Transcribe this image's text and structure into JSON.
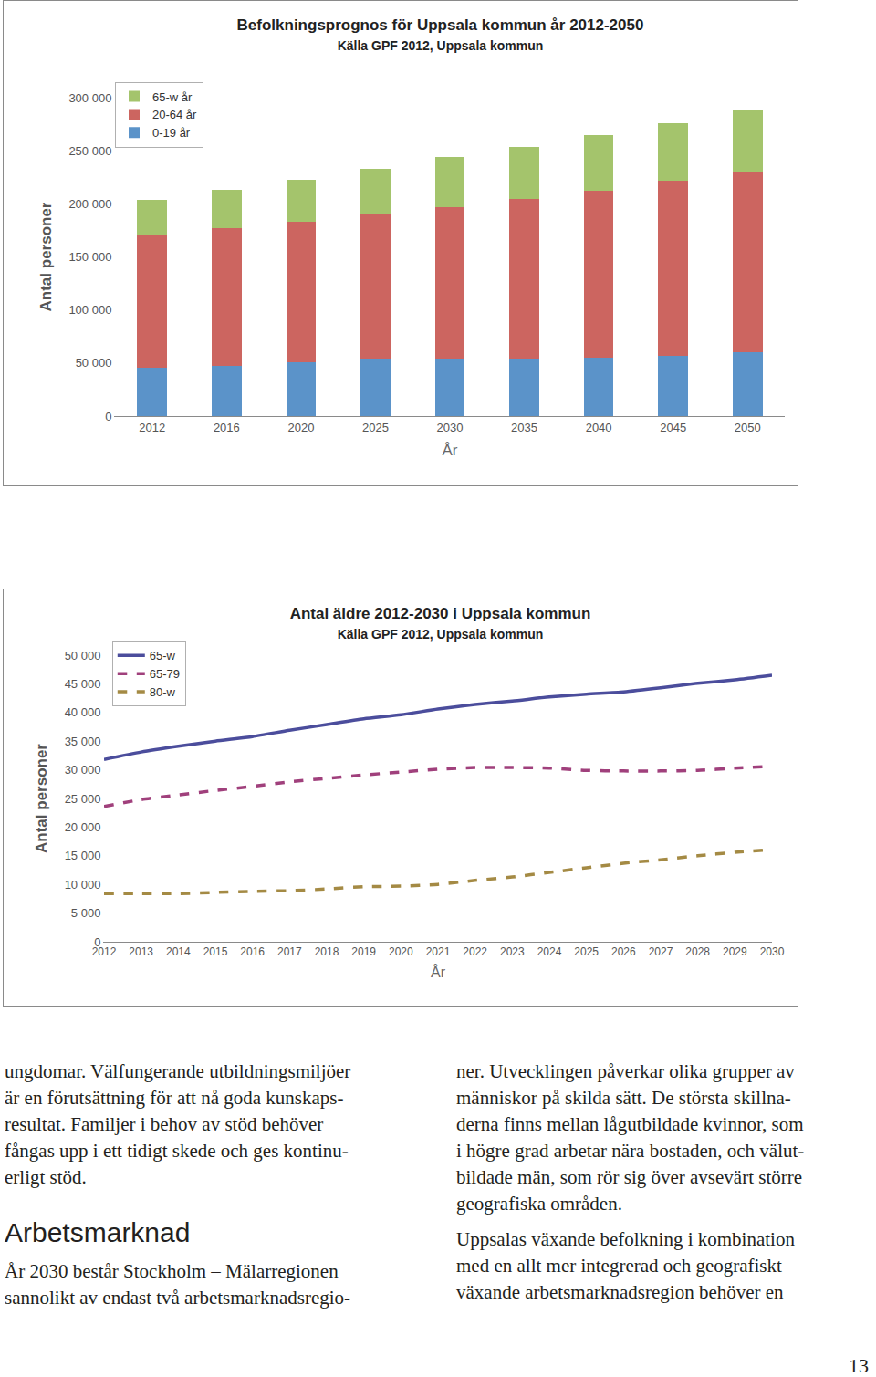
{
  "chart_data": [
    {
      "type": "bar",
      "title": "Befolkningsprognos för Uppsala kommun år 2012-2050",
      "subtitle": "Källa GPF 2012, Uppsala kommun",
      "x_label": "År",
      "y_label": "Antal personer",
      "stacked": true,
      "grid": false,
      "legend": "upper left",
      "categories": [
        "2012",
        "2016",
        "2020",
        "2025",
        "2030",
        "2035",
        "2040",
        "2045",
        "2050"
      ],
      "series": [
        {
          "name": "0-19 år",
          "color": "#5b93c9",
          "values": [
            45700,
            47400,
            50900,
            54300,
            54300,
            54300,
            55200,
            56900,
            60300
          ]
        },
        {
          "name": "20-64 år",
          "color": "#cc6560",
          "values": [
            125000,
            129300,
            131900,
            135400,
            142300,
            150000,
            156900,
            164700,
            169900
          ]
        },
        {
          "name": "65-w år",
          "color": "#a4c46c",
          "values": [
            32700,
            36200,
            39600,
            43100,
            47400,
            49100,
            52600,
            54300,
            57700
          ]
        }
      ],
      "ylim": [
        0,
        300000
      ],
      "yticks": [
        {
          "value": 0,
          "label": "0"
        },
        {
          "value": 50000,
          "label": "50 000"
        },
        {
          "value": 100000,
          "label": "100 000"
        },
        {
          "value": 150000,
          "label": "150 000"
        },
        {
          "value": 200000,
          "label": "200 000"
        },
        {
          "value": 250000,
          "label": "250 000"
        },
        {
          "value": 300000,
          "label": "300 000"
        }
      ]
    },
    {
      "type": "line",
      "title": "Antal äldre 2012-2030 i Uppsala kommun",
      "subtitle": "Källa GPF 2012, Uppsala kommun",
      "x_label": "År",
      "y_label": "Antal personer",
      "grid": false,
      "legend": "upper left",
      "x": [
        2012,
        2013,
        2014,
        2015,
        2016,
        2017,
        2018,
        2019,
        2020,
        2021,
        2022,
        2023,
        2024,
        2025,
        2026,
        2027,
        2028,
        2029,
        2030
      ],
      "series": [
        {
          "name": "65-w",
          "color": "#4b4d9c",
          "line_style": "solid",
          "values": [
            31800,
            33100,
            34100,
            35000,
            35800,
            36900,
            37900,
            38900,
            39600,
            40600,
            41400,
            42000,
            42700,
            43200,
            43600,
            44300,
            45100,
            45700,
            46500
          ]
        },
        {
          "name": "65-79",
          "color": "#a0407c",
          "line_style": "dash",
          "values": [
            23600,
            24800,
            25600,
            26400,
            27100,
            27900,
            28500,
            29100,
            29600,
            30100,
            30400,
            30400,
            30300,
            29900,
            29800,
            29800,
            29900,
            30300,
            30600
          ]
        },
        {
          "name": "80-w",
          "color": "#a48a44",
          "line_style": "dash",
          "values": [
            8400,
            8400,
            8400,
            8600,
            8800,
            8900,
            9200,
            9600,
            9700,
            10000,
            10700,
            11300,
            12100,
            12900,
            13700,
            14300,
            15000,
            15600,
            16100
          ]
        }
      ],
      "xlim": [
        2012,
        2030
      ],
      "xticks": [
        2012,
        2013,
        2014,
        2015,
        2016,
        2017,
        2018,
        2019,
        2020,
        2021,
        2022,
        2023,
        2024,
        2025,
        2026,
        2027,
        2028,
        2029,
        2030
      ],
      "ylim": [
        0,
        50000
      ],
      "yticks": [
        {
          "value": 0,
          "label": "0"
        },
        {
          "value": 5000,
          "label": "5 000"
        },
        {
          "value": 10000,
          "label": "10 000"
        },
        {
          "value": 15000,
          "label": "15 000"
        },
        {
          "value": 20000,
          "label": "20 000"
        },
        {
          "value": 25000,
          "label": "25 000"
        },
        {
          "value": 30000,
          "label": "30 000"
        },
        {
          "value": 35000,
          "label": "35 000"
        },
        {
          "value": 40000,
          "label": "40 000"
        },
        {
          "value": 45000,
          "label": "45 000"
        },
        {
          "value": 50000,
          "label": "50 000"
        }
      ]
    }
  ],
  "text": {
    "left_column": {
      "paragraph": [
        "ungdomar. Välfungerande utbildningsmiljöer",
        "är en förutsättning för att nå goda kunskaps-",
        "resultat. Familjer i behov av stöd behöver",
        "fångas upp i ett tidigt skede och ges kontinu-",
        "erligt stöd."
      ],
      "heading": "Arbetsmarknad",
      "paragraph_2": [
        "År 2030 består Stockholm – Mälarregionen",
        "sannolikt av endast två arbetsmarknadsregio-"
      ]
    },
    "right_column": {
      "paragraphs": [
        [
          "ner. Utvecklingen påverkar olika grupper av",
          "människor på skilda sätt. De största skillna-",
          "derna finns mellan lågutbildade kvinnor, som",
          "i högre grad arbetar nära bostaden, och välut-",
          "bildade män, som rör sig över avsevärt större",
          "geografiska områden."
        ],
        [
          "Uppsalas växande befolkning i kombination",
          "med en allt mer integrerad och geografiskt",
          "växande arbetsmarknadsregion behöver en"
        ]
      ]
    },
    "page_number": "13"
  }
}
